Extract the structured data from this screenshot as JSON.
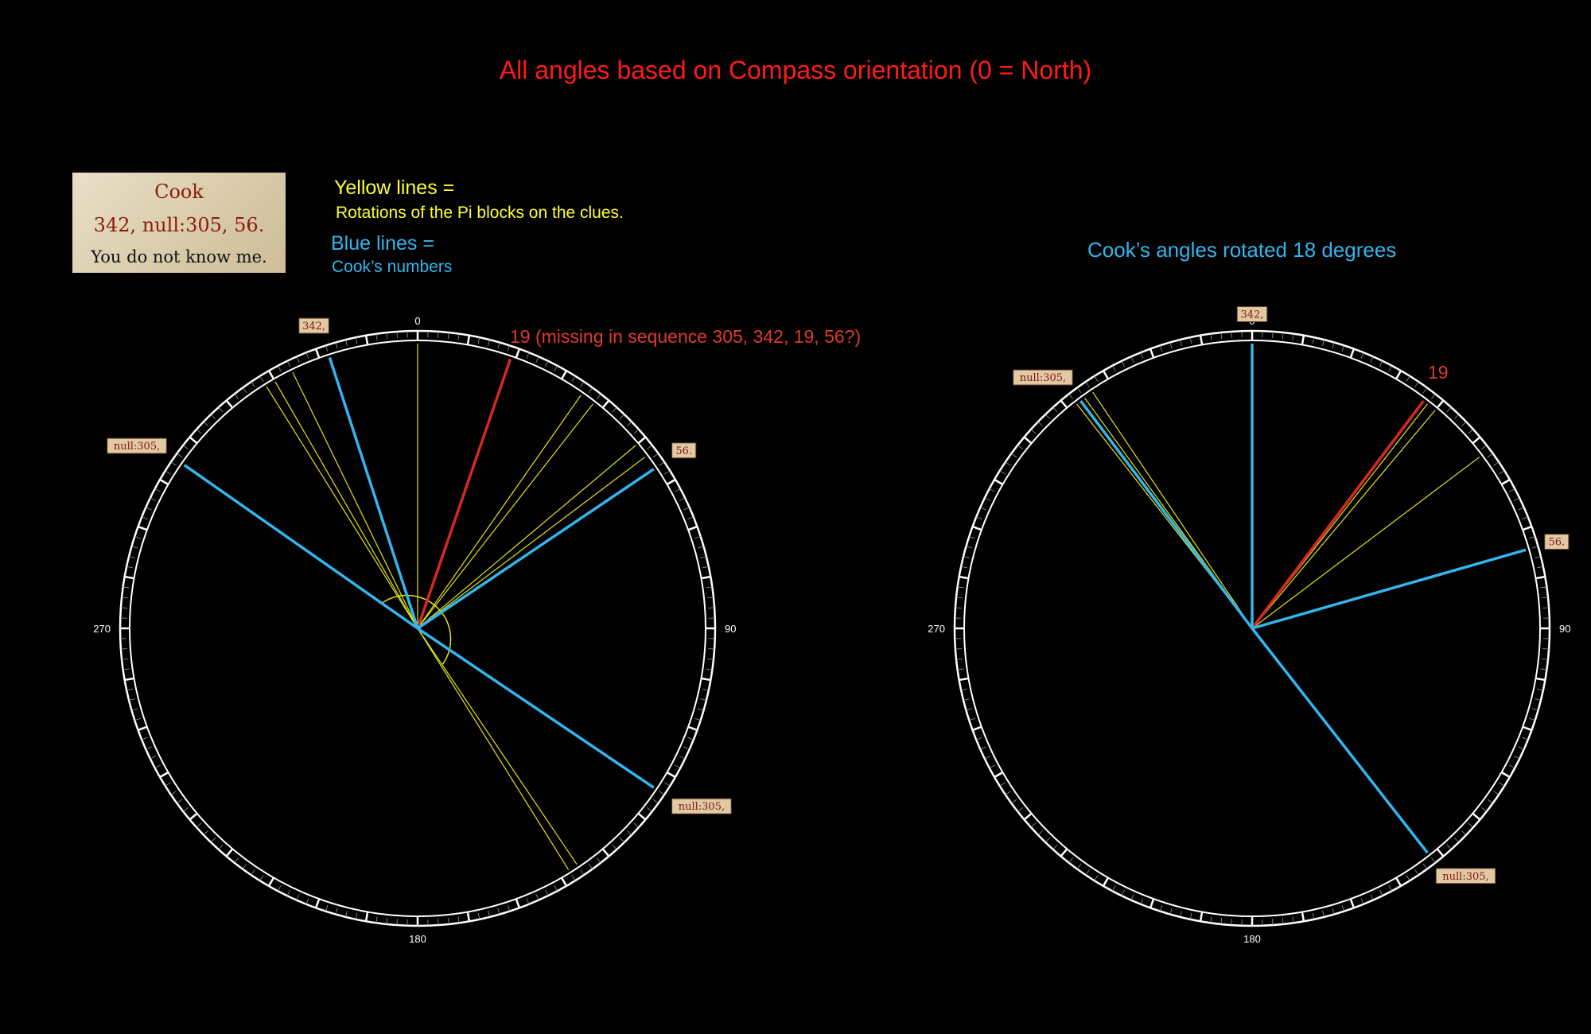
{
  "title": "All angles based on Compass orientation (0 = North)",
  "clue_card": {
    "line1": "Cook",
    "line2": "342, null:305, 56.",
    "line3": "You do not know me."
  },
  "legend": {
    "yellow_title": "Yellow lines =",
    "yellow_desc": "Rotations of the Pi blocks on the clues.",
    "blue_title": "Blue lines =",
    "blue_desc": "Cook’s numbers"
  },
  "right_caption": "Cook’s angles rotated 18 degrees",
  "missing_note": "19 (missing in sequence 305, 342, 19, 56?)",
  "right_red_label": "19",
  "dial_labels": {
    "north": "0",
    "east": "90",
    "south": "180",
    "west": "270"
  },
  "colors": {
    "yellow": "#e6e619",
    "blue": "#33b5ee",
    "red": "#d42a22",
    "title_red": "#ff1a1a"
  },
  "left_dial": {
    "blue_lines": [
      {
        "angle": 342,
        "label": "342,"
      },
      {
        "angle": 305,
        "label": "null:305,"
      },
      {
        "angle": 56,
        "label": "56."
      },
      {
        "angle": 124,
        "label": "null:305,"
      }
    ],
    "red_line": {
      "angle": 19
    },
    "yellow_lines": [
      0,
      328,
      330,
      334,
      35,
      38,
      50,
      53,
      146,
      148
    ]
  },
  "right_dial": {
    "blue_lines": [
      {
        "angle": 0,
        "label": "342,"
      },
      {
        "angle": 323,
        "label": "null:305,"
      },
      {
        "angle": 74,
        "label": "56."
      },
      {
        "angle": 142,
        "label": "null:305,"
      }
    ],
    "red_line": {
      "angle": 37
    },
    "yellow_lines": [
      322,
      324,
      326,
      38,
      40,
      53,
      142
    ]
  }
}
